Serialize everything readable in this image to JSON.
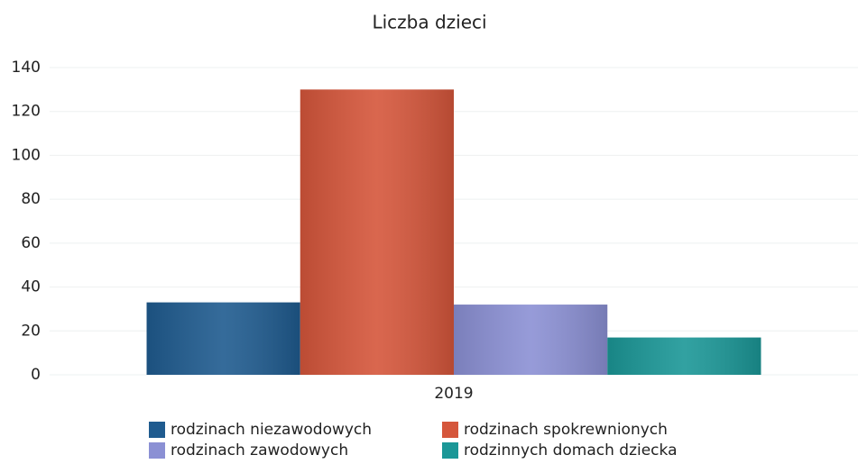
{
  "chart_data": {
    "type": "bar",
    "title": "Liczba dzieci",
    "categories": [
      "2019"
    ],
    "series": [
      {
        "name": "rodzinach niezawodowych",
        "color": "#1f5b8f",
        "values": [
          33
        ]
      },
      {
        "name": "rodzinach spokrewnionych",
        "color": "#d5563b",
        "values": [
          130
        ]
      },
      {
        "name": "rodzinach zawodowych",
        "color": "#8b90d4",
        "values": [
          32
        ]
      },
      {
        "name": "rodzinnych domach dziecka",
        "color": "#1b9797",
        "values": [
          17
        ]
      }
    ],
    "ylim": [
      0,
      140
    ],
    "yticks": [
      0,
      20,
      40,
      60,
      80,
      100,
      120,
      140
    ],
    "grid": true,
    "legend": "bottom"
  }
}
